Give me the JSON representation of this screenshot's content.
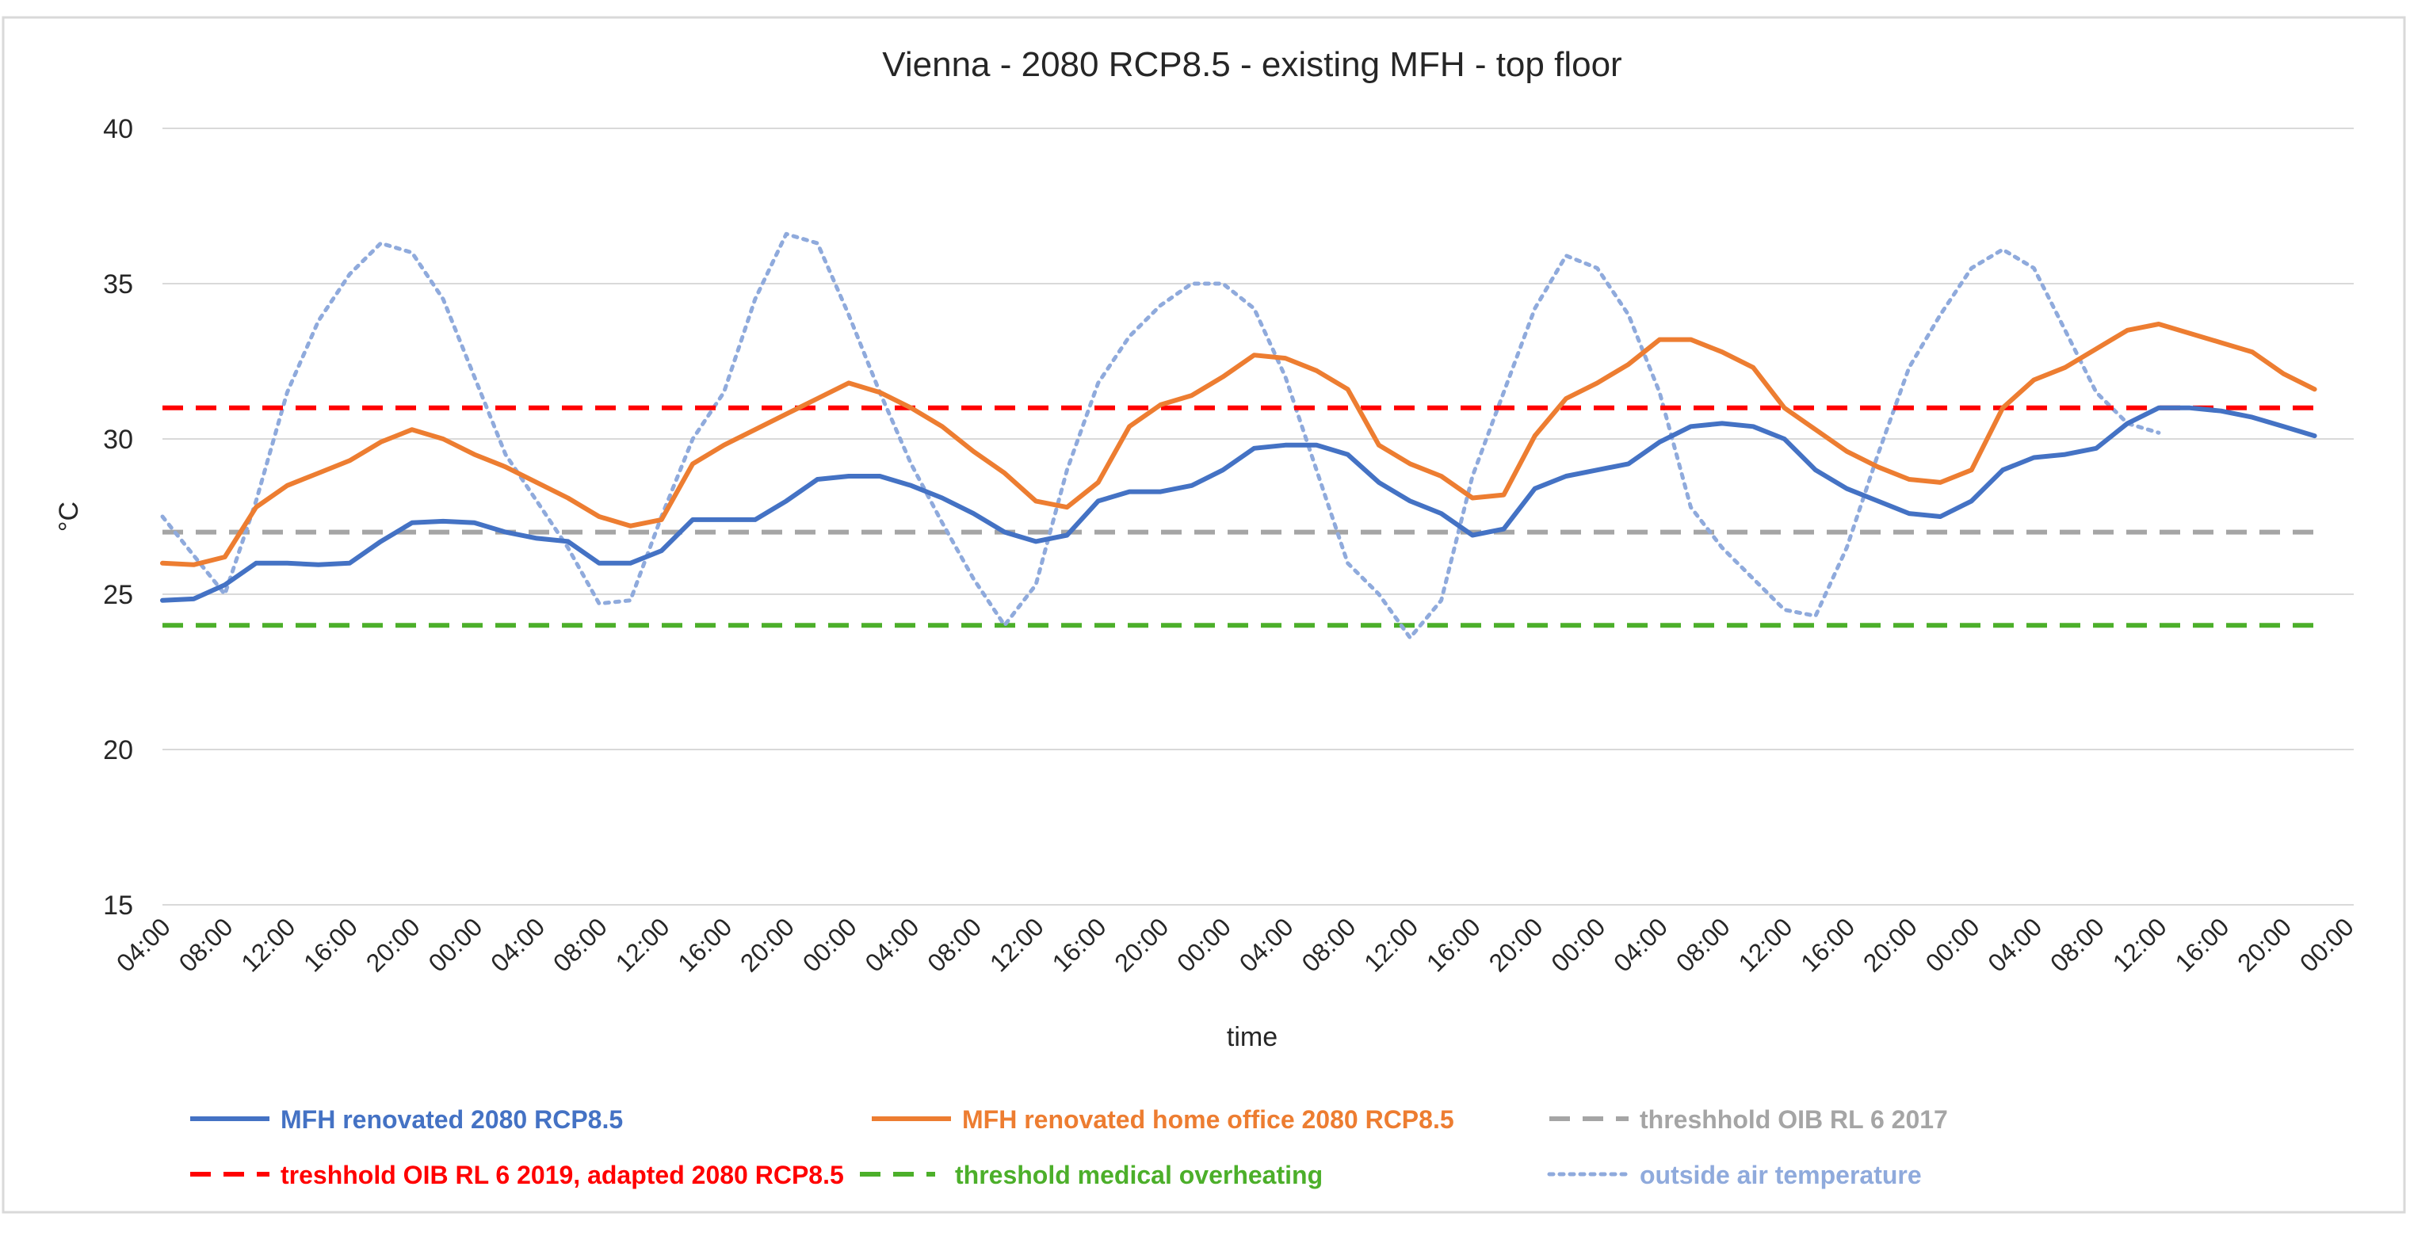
{
  "chart_data": {
    "type": "line",
    "title": "Vienna - 2080 RCP8.5 - existing MFH - top floor",
    "xlabel": "time",
    "ylabel": "°C",
    "ylim": [
      15,
      40
    ],
    "yticks": [
      15,
      20,
      25,
      30,
      35,
      40
    ],
    "grid": true,
    "legend_position": "bottom",
    "x_range": [
      0,
      140
    ],
    "x_ticks": [
      {
        "x": 0,
        "label": "04:00"
      },
      {
        "x": 4,
        "label": "08:00"
      },
      {
        "x": 8,
        "label": "12:00"
      },
      {
        "x": 12,
        "label": "16:00"
      },
      {
        "x": 16,
        "label": "20:00"
      },
      {
        "x": 20,
        "label": "00:00"
      },
      {
        "x": 24,
        "label": "04:00"
      },
      {
        "x": 28,
        "label": "08:00"
      },
      {
        "x": 32,
        "label": "12:00"
      },
      {
        "x": 36,
        "label": "16:00"
      },
      {
        "x": 40,
        "label": "20:00"
      },
      {
        "x": 44,
        "label": "00:00"
      },
      {
        "x": 48,
        "label": "04:00"
      },
      {
        "x": 52,
        "label": "08:00"
      },
      {
        "x": 56,
        "label": "12:00"
      },
      {
        "x": 60,
        "label": "16:00"
      },
      {
        "x": 64,
        "label": "20:00"
      },
      {
        "x": 68,
        "label": "00:00"
      },
      {
        "x": 72,
        "label": "04:00"
      },
      {
        "x": 76,
        "label": "08:00"
      },
      {
        "x": 80,
        "label": "12:00"
      },
      {
        "x": 84,
        "label": "16:00"
      },
      {
        "x": 88,
        "label": "20:00"
      },
      {
        "x": 92,
        "label": "00:00"
      },
      {
        "x": 96,
        "label": "04:00"
      },
      {
        "x": 100,
        "label": "08:00"
      },
      {
        "x": 104,
        "label": "12:00"
      },
      {
        "x": 108,
        "label": "16:00"
      },
      {
        "x": 112,
        "label": "20:00"
      },
      {
        "x": 116,
        "label": "00:00"
      },
      {
        "x": 120,
        "label": "04:00"
      },
      {
        "x": 124,
        "label": "08:00"
      },
      {
        "x": 128,
        "label": "12:00"
      },
      {
        "x": 132,
        "label": "16:00"
      },
      {
        "x": 136,
        "label": "20:00"
      },
      {
        "x": 140,
        "label": "00:00"
      }
    ],
    "series": [
      {
        "name": "MFH renovated 2080 RCP8.5",
        "color": "#4472c4",
        "style": "solid",
        "points": [
          [
            0,
            24.8
          ],
          [
            2,
            24.85
          ],
          [
            4,
            25.3
          ],
          [
            6,
            26.0
          ],
          [
            8,
            26.0
          ],
          [
            10,
            25.95
          ],
          [
            12,
            26.0
          ],
          [
            14,
            26.7
          ],
          [
            16,
            27.3
          ],
          [
            18,
            27.35
          ],
          [
            20,
            27.3
          ],
          [
            22,
            27.0
          ],
          [
            24,
            26.8
          ],
          [
            26,
            26.7
          ],
          [
            28,
            26.0
          ],
          [
            30,
            26.0
          ],
          [
            32,
            26.4
          ],
          [
            34,
            27.4
          ],
          [
            36,
            27.4
          ],
          [
            38,
            27.4
          ],
          [
            40,
            28.0
          ],
          [
            42,
            28.7
          ],
          [
            44,
            28.8
          ],
          [
            46,
            28.8
          ],
          [
            48,
            28.5
          ],
          [
            50,
            28.1
          ],
          [
            52,
            27.6
          ],
          [
            54,
            27.0
          ],
          [
            56,
            26.7
          ],
          [
            58,
            26.9
          ],
          [
            60,
            28.0
          ],
          [
            62,
            28.3
          ],
          [
            64,
            28.3
          ],
          [
            66,
            28.5
          ],
          [
            68,
            29.0
          ],
          [
            70,
            29.7
          ],
          [
            72,
            29.8
          ],
          [
            74,
            29.8
          ],
          [
            76,
            29.5
          ],
          [
            78,
            28.6
          ],
          [
            80,
            28.0
          ],
          [
            82,
            27.6
          ],
          [
            84,
            26.9
          ],
          [
            86,
            27.1
          ],
          [
            88,
            28.4
          ],
          [
            90,
            28.8
          ],
          [
            92,
            29.0
          ],
          [
            94,
            29.2
          ],
          [
            96,
            29.9
          ],
          [
            98,
            30.4
          ],
          [
            100,
            30.5
          ],
          [
            102,
            30.4
          ],
          [
            104,
            30.0
          ],
          [
            106,
            29.0
          ],
          [
            108,
            28.4
          ],
          [
            110,
            28.0
          ],
          [
            112,
            27.6
          ],
          [
            114,
            27.5
          ],
          [
            116,
            28.0
          ],
          [
            118,
            29.0
          ],
          [
            120,
            29.4
          ],
          [
            122,
            29.5
          ],
          [
            124,
            29.7
          ],
          [
            126,
            30.5
          ],
          [
            128,
            31.0
          ],
          [
            130,
            31.0
          ],
          [
            132,
            30.9
          ],
          [
            134,
            30.7
          ],
          [
            136,
            30.4
          ],
          [
            138,
            30.1
          ]
        ]
      },
      {
        "name": "MFH renovated home office 2080 RCP8.5",
        "color": "#ed7d31",
        "style": "solid",
        "points": [
          [
            0,
            26.0
          ],
          [
            2,
            25.95
          ],
          [
            4,
            26.2
          ],
          [
            6,
            27.8
          ],
          [
            8,
            28.5
          ],
          [
            10,
            28.9
          ],
          [
            12,
            29.3
          ],
          [
            14,
            29.9
          ],
          [
            16,
            30.3
          ],
          [
            18,
            30.0
          ],
          [
            20,
            29.5
          ],
          [
            22,
            29.1
          ],
          [
            24,
            28.6
          ],
          [
            26,
            28.1
          ],
          [
            28,
            27.5
          ],
          [
            30,
            27.2
          ],
          [
            32,
            27.4
          ],
          [
            34,
            29.2
          ],
          [
            36,
            29.8
          ],
          [
            38,
            30.3
          ],
          [
            40,
            30.8
          ],
          [
            42,
            31.3
          ],
          [
            44,
            31.8
          ],
          [
            46,
            31.5
          ],
          [
            48,
            31.0
          ],
          [
            50,
            30.4
          ],
          [
            52,
            29.6
          ],
          [
            54,
            28.9
          ],
          [
            56,
            28.0
          ],
          [
            58,
            27.8
          ],
          [
            60,
            28.6
          ],
          [
            62,
            30.4
          ],
          [
            64,
            31.1
          ],
          [
            66,
            31.4
          ],
          [
            68,
            32.0
          ],
          [
            70,
            32.7
          ],
          [
            72,
            32.6
          ],
          [
            74,
            32.2
          ],
          [
            76,
            31.6
          ],
          [
            78,
            29.8
          ],
          [
            80,
            29.2
          ],
          [
            82,
            28.8
          ],
          [
            84,
            28.1
          ],
          [
            86,
            28.2
          ],
          [
            88,
            30.1
          ],
          [
            90,
            31.3
          ],
          [
            92,
            31.8
          ],
          [
            94,
            32.4
          ],
          [
            96,
            33.2
          ],
          [
            98,
            33.2
          ],
          [
            100,
            32.8
          ],
          [
            102,
            32.3
          ],
          [
            104,
            31.0
          ],
          [
            106,
            30.3
          ],
          [
            108,
            29.6
          ],
          [
            110,
            29.1
          ],
          [
            112,
            28.7
          ],
          [
            114,
            28.6
          ],
          [
            116,
            29.0
          ],
          [
            118,
            31.0
          ],
          [
            120,
            31.9
          ],
          [
            122,
            32.3
          ],
          [
            124,
            32.9
          ],
          [
            126,
            33.5
          ],
          [
            128,
            33.7
          ],
          [
            130,
            33.4
          ],
          [
            132,
            33.1
          ],
          [
            134,
            32.8
          ],
          [
            136,
            32.1
          ],
          [
            138,
            31.6
          ]
        ]
      },
      {
        "name": "threshhold OIB RL 6 2017",
        "color": "#a5a5a5",
        "style": "dashed",
        "points": [
          [
            0,
            27
          ],
          [
            138,
            27
          ]
        ]
      },
      {
        "name": "treshhold OIB RL 6 2019, adapted 2080 RCP8.5",
        "color": "#ff0000",
        "style": "dashed",
        "points": [
          [
            0,
            31
          ],
          [
            138,
            31
          ]
        ]
      },
      {
        "name": "threshold medical overheating",
        "color": "#4caf2a",
        "style": "dashed",
        "points": [
          [
            0,
            24
          ],
          [
            138,
            24
          ]
        ]
      },
      {
        "name": "outside air temperature",
        "color": "#8faadc",
        "style": "dotted",
        "points": [
          [
            0,
            27.5
          ],
          [
            4,
            25.0
          ],
          [
            6,
            28.0
          ],
          [
            8,
            31.5
          ],
          [
            10,
            33.8
          ],
          [
            12,
            35.3
          ],
          [
            14,
            36.3
          ],
          [
            16,
            36.0
          ],
          [
            18,
            34.5
          ],
          [
            20,
            32.0
          ],
          [
            22,
            29.5
          ],
          [
            24,
            28.0
          ],
          [
            26,
            26.5
          ],
          [
            28,
            24.7
          ],
          [
            30,
            24.8
          ],
          [
            32,
            27.5
          ],
          [
            34,
            30.0
          ],
          [
            36,
            31.5
          ],
          [
            38,
            34.5
          ],
          [
            40,
            36.6
          ],
          [
            42,
            36.3
          ],
          [
            44,
            34.0
          ],
          [
            46,
            31.5
          ],
          [
            48,
            29.2
          ],
          [
            50,
            27.3
          ],
          [
            52,
            25.5
          ],
          [
            54,
            24.0
          ],
          [
            56,
            25.3
          ],
          [
            58,
            29.0
          ],
          [
            60,
            31.8
          ],
          [
            62,
            33.3
          ],
          [
            64,
            34.3
          ],
          [
            66,
            35.0
          ],
          [
            68,
            35.0
          ],
          [
            70,
            34.2
          ],
          [
            72,
            32.0
          ],
          [
            74,
            29.0
          ],
          [
            76,
            26.0
          ],
          [
            78,
            25.0
          ],
          [
            80,
            23.6
          ],
          [
            82,
            24.8
          ],
          [
            84,
            28.8
          ],
          [
            86,
            31.5
          ],
          [
            88,
            34.2
          ],
          [
            90,
            35.9
          ],
          [
            92,
            35.5
          ],
          [
            94,
            34.0
          ],
          [
            96,
            31.5
          ],
          [
            98,
            27.8
          ],
          [
            100,
            26.5
          ],
          [
            102,
            25.5
          ],
          [
            104,
            24.5
          ],
          [
            106,
            24.3
          ],
          [
            108,
            26.5
          ],
          [
            110,
            29.5
          ],
          [
            112,
            32.3
          ],
          [
            114,
            34.0
          ],
          [
            116,
            35.5
          ],
          [
            118,
            36.1
          ],
          [
            120,
            35.5
          ],
          [
            122,
            33.5
          ],
          [
            124,
            31.5
          ],
          [
            126,
            30.5
          ],
          [
            128,
            30.2
          ]
        ]
      }
    ]
  }
}
